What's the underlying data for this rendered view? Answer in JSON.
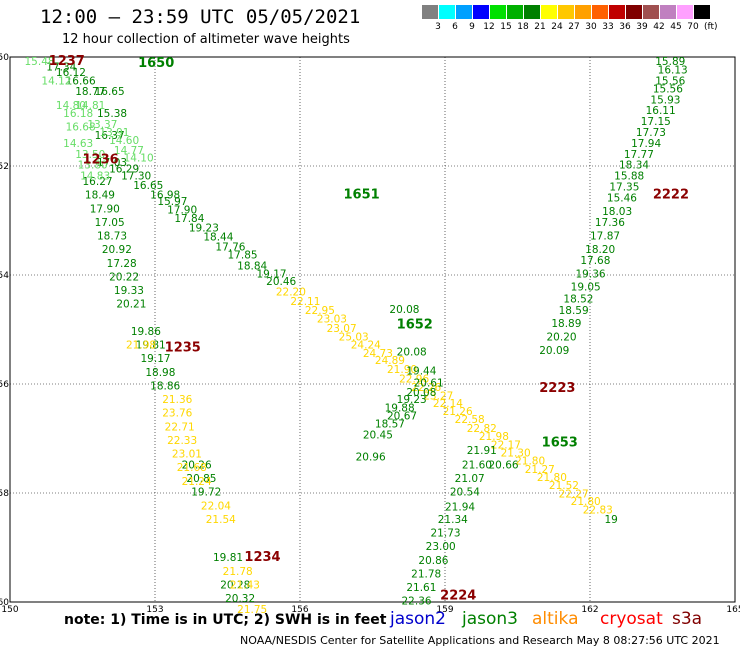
{
  "title": "12:00 – 23:59 UTC 05/05/2021",
  "subtitle": "12 hour collection of altimeter wave heights",
  "legend": {
    "unit": "(ft)",
    "ticks": [
      "3",
      "6",
      "9",
      "12",
      "15",
      "18",
      "21",
      "24",
      "27",
      "30",
      "33",
      "36",
      "39",
      "42",
      "45",
      "70"
    ],
    "colors": [
      "#808080",
      "#00ffff",
      "#00a0ff",
      "#0000ff",
      "#00e000",
      "#00b000",
      "#008000",
      "#ffff00",
      "#ffc800",
      "#ffa000",
      "#ff6000",
      "#c00000",
      "#800000",
      "#a05050",
      "#c080c0",
      "#ffa0ff",
      "#000000"
    ]
  },
  "note": "note: 1) Time is in UTC; 2) SWH is in feet",
  "satellites": [
    {
      "name": "jason2",
      "color": "#0000cc"
    },
    {
      "name": "jason3",
      "color": "#008000"
    },
    {
      "name": "altika",
      "color": "#ff8c00"
    },
    {
      "name": "cryosat",
      "color": "#ff0000"
    },
    {
      "name": "s3a",
      "color": "#800000"
    }
  ],
  "credit": "NOAA/NESDIS Center for Satellite Applications and Research    May  8 08:27:56 UTC 2021",
  "chart_data": {
    "type": "scatter",
    "x_ticks": [
      "150",
      "153",
      "156",
      "159",
      "162",
      "165"
    ],
    "y_ticks": [
      "-50",
      "-52",
      "-54",
      "-56",
      "-58",
      "-60"
    ],
    "xlim": [
      150,
      165
    ],
    "ylim": [
      -60,
      -50
    ],
    "grid": true,
    "tracks": [
      {
        "color": "#008000",
        "pass": "1651",
        "pass_pos": [
          156.9,
          -52.6
        ],
        "points": [
          [
            151.8,
            -52.0,
            "17.03"
          ],
          [
            152.05,
            -52.12,
            "16.29"
          ],
          [
            152.3,
            -52.25,
            "17.30"
          ],
          [
            152.55,
            -52.42,
            "16.65"
          ],
          [
            152.9,
            -52.6,
            "16.98"
          ],
          [
            153.05,
            -52.72,
            "15.97"
          ],
          [
            153.25,
            -52.87,
            "17.90"
          ],
          [
            153.4,
            -53.03,
            "17.84"
          ],
          [
            153.7,
            -53.2,
            "19.23"
          ],
          [
            154.0,
            -53.37,
            "18.44"
          ],
          [
            154.25,
            -53.55,
            "17.76"
          ],
          [
            154.5,
            -53.7,
            "17.85"
          ],
          [
            154.7,
            -53.9,
            "18.84"
          ],
          [
            155.1,
            -54.05,
            "19.17"
          ],
          [
            155.3,
            -54.18,
            "20.46"
          ],
          [
            157.85,
            -54.7,
            "20.08"
          ]
        ]
      },
      {
        "color": "#ffd700",
        "pass": "",
        "pass_pos": null,
        "points": [
          [
            155.5,
            -54.38,
            "22.20"
          ],
          [
            155.8,
            -54.55,
            "22.11"
          ],
          [
            156.1,
            -54.72,
            "22.95"
          ],
          [
            156.35,
            -54.87,
            "23.03"
          ],
          [
            156.55,
            -55.05,
            "23.07"
          ],
          [
            156.8,
            -55.2,
            "25.03"
          ],
          [
            157.05,
            -55.35,
            "24.24"
          ],
          [
            157.3,
            -55.5,
            "24.73"
          ],
          [
            157.55,
            -55.63,
            "24.89"
          ],
          [
            157.8,
            -55.8,
            "21.90"
          ],
          [
            158.05,
            -55.97,
            "22.96"
          ],
          [
            158.3,
            -56.13,
            "22.26"
          ],
          [
            158.55,
            -56.28,
            "23.27"
          ],
          [
            158.75,
            -56.42,
            "22.14"
          ],
          [
            158.95,
            -56.57,
            "21.26"
          ],
          [
            159.2,
            -56.72,
            "22.58"
          ],
          [
            159.45,
            -56.88,
            "22.82"
          ],
          [
            159.7,
            -57.03,
            "21.98"
          ],
          [
            159.95,
            -57.18,
            "22.17"
          ],
          [
            160.15,
            -57.33,
            "21.30"
          ],
          [
            160.45,
            -57.48,
            "21.80"
          ],
          [
            160.65,
            -57.63,
            "21.27"
          ],
          [
            160.9,
            -57.78,
            "21.80"
          ],
          [
            161.15,
            -57.93,
            "21.52"
          ],
          [
            161.35,
            -58.08,
            "22.27"
          ],
          [
            161.6,
            -58.22,
            "21.80"
          ],
          [
            161.85,
            -58.38,
            "22.83"
          ]
        ]
      },
      {
        "color": "#008000",
        "pass": "1652",
        "pass_pos": [
          158.0,
          -54.98
        ],
        "points": [
          [
            158.0,
            -55.48,
            "20.08"
          ],
          [
            158.2,
            -55.83,
            "19.44"
          ],
          [
            158.35,
            -56.05,
            "20.61"
          ],
          [
            158.2,
            -56.22,
            "20.08"
          ],
          [
            158.0,
            -56.35,
            "19.23"
          ],
          [
            157.75,
            -56.5,
            "19.88"
          ],
          [
            157.8,
            -56.65,
            "20.67"
          ],
          [
            157.55,
            -56.8,
            "18.57"
          ],
          [
            157.3,
            -57.0,
            "20.45"
          ],
          [
            157.15,
            -57.4,
            "20.96"
          ],
          [
            159.9,
            -57.55,
            "20.66"
          ],
          [
            162.3,
            -58.55,
            "19"
          ]
        ]
      },
      {
        "color": "#008000",
        "pass": "1653",
        "pass_pos": [
          161.0,
          -57.15
        ],
        "points": [
          [
            163.35,
            -50.15,
            "15.89"
          ],
          [
            163.4,
            -50.3,
            "16.13"
          ],
          [
            163.35,
            -50.5,
            "15.56"
          ],
          [
            163.3,
            -50.65,
            "15.56"
          ],
          [
            163.25,
            -50.85,
            "15.93"
          ],
          [
            163.15,
            -51.05,
            "16.11"
          ],
          [
            163.05,
            -51.25,
            "17.15"
          ],
          [
            162.95,
            -51.45,
            "17.73"
          ],
          [
            162.85,
            -51.65,
            "17.94"
          ],
          [
            162.7,
            -51.85,
            "17.77"
          ],
          [
            162.6,
            -52.05,
            "18.34"
          ],
          [
            162.5,
            -52.25,
            "15.88"
          ],
          [
            162.4,
            -52.45,
            "17.35"
          ],
          [
            162.35,
            -52.65,
            "15.46"
          ],
          [
            162.25,
            -52.9,
            "18.03"
          ],
          [
            162.1,
            -53.1,
            "17.36"
          ],
          [
            162.0,
            -53.35,
            "17.87"
          ],
          [
            161.9,
            -53.6,
            "18.20"
          ],
          [
            161.8,
            -53.8,
            "17.68"
          ],
          [
            161.7,
            -54.05,
            "19.36"
          ],
          [
            161.6,
            -54.28,
            "19.05"
          ],
          [
            161.45,
            -54.5,
            "18.52"
          ],
          [
            161.35,
            -54.72,
            "18.59"
          ],
          [
            161.2,
            -54.95,
            "18.89"
          ],
          [
            161.1,
            -55.2,
            "20.20"
          ],
          [
            160.95,
            -55.45,
            "20.09"
          ],
          [
            159.45,
            -57.28,
            "21.91"
          ],
          [
            159.35,
            -57.55,
            "21.60"
          ],
          [
            159.2,
            -57.8,
            "21.07"
          ],
          [
            159.1,
            -58.05,
            "20.54"
          ],
          [
            159.0,
            -58.32,
            "21.94"
          ],
          [
            158.85,
            -58.55,
            "21.34"
          ],
          [
            158.7,
            -58.8,
            "21.73"
          ],
          [
            158.6,
            -59.05,
            "23.00"
          ],
          [
            158.45,
            -59.3,
            "20.86"
          ],
          [
            158.3,
            -59.55,
            "21.78"
          ],
          [
            158.2,
            -59.8,
            "21.61"
          ],
          [
            158.1,
            -60.05,
            "22.36"
          ]
        ]
      },
      {
        "color": "#008000",
        "pass": "1650",
        "pass_pos": [
          152.65,
          -50.18
        ],
        "points": [
          [
            150.75,
            -50.25,
            "17.34"
          ],
          [
            150.95,
            -50.35,
            "16.12"
          ],
          [
            151.15,
            -50.5,
            "16.66"
          ],
          [
            151.35,
            -50.7,
            "18.77"
          ],
          [
            151.75,
            -50.7,
            "16.65"
          ],
          [
            151.8,
            -51.1,
            "15.38"
          ],
          [
            151.75,
            -51.5,
            "16.37"
          ],
          [
            151.5,
            -52.35,
            "16.27"
          ],
          [
            151.55,
            -52.6,
            "18.49"
          ],
          [
            151.65,
            -52.85,
            "17.90"
          ],
          [
            151.75,
            -53.1,
            "17.05"
          ],
          [
            151.8,
            -53.35,
            "18.73"
          ],
          [
            151.9,
            -53.6,
            "20.92"
          ],
          [
            152.0,
            -53.85,
            "17.28"
          ],
          [
            152.05,
            -54.1,
            "20.22"
          ],
          [
            152.15,
            -54.35,
            "19.33"
          ],
          [
            152.2,
            -54.6,
            "20.21"
          ],
          [
            152.5,
            -55.1,
            "19.86"
          ],
          [
            152.6,
            -55.35,
            "19.81"
          ],
          [
            152.7,
            -55.6,
            "19.17"
          ],
          [
            152.8,
            -55.85,
            "18.98"
          ],
          [
            152.9,
            -56.1,
            "18.86"
          ],
          [
            153.55,
            -57.55,
            "20.26"
          ],
          [
            153.65,
            -57.8,
            "20.85"
          ],
          [
            153.75,
            -58.05,
            "19.72"
          ],
          [
            154.2,
            -59.25,
            "19.81"
          ],
          [
            154.35,
            -59.75,
            "20.28"
          ],
          [
            154.45,
            -60.0,
            "20.32"
          ]
        ]
      },
      {
        "color": "#66dd66",
        "pass": "",
        "pass_pos": null,
        "points": [
          [
            150.3,
            -50.15,
            "15.48"
          ],
          [
            150.65,
            -50.5,
            "14.12"
          ],
          [
            150.95,
            -50.95,
            "14.80"
          ],
          [
            151.35,
            -50.95,
            "14.81"
          ],
          [
            151.1,
            -51.1,
            "16.18"
          ],
          [
            151.15,
            -51.35,
            "16.68"
          ],
          [
            151.1,
            -51.65,
            "14.63"
          ],
          [
            151.35,
            -51.85,
            "13.50"
          ],
          [
            151.4,
            -52.05,
            "13.80"
          ],
          [
            151.45,
            -52.25,
            "14.83"
          ],
          [
            151.6,
            -51.3,
            "13.37"
          ],
          [
            151.85,
            -51.45,
            "13.91"
          ],
          [
            152.05,
            -51.6,
            "14.60"
          ],
          [
            152.15,
            -51.78,
            "14.77"
          ],
          [
            152.35,
            -51.92,
            "14.10"
          ]
        ]
      },
      {
        "color": "#ffd700",
        "pass": "",
        "pass_pos": null,
        "points": [
          [
            152.4,
            -55.35,
            "21.98"
          ],
          [
            153.15,
            -56.35,
            "21.36"
          ],
          [
            153.15,
            -56.6,
            "23.76"
          ],
          [
            153.2,
            -56.85,
            "22.71"
          ],
          [
            153.25,
            -57.1,
            "22.33"
          ],
          [
            153.35,
            -57.35,
            "23.01"
          ],
          [
            153.45,
            -57.6,
            "21.68"
          ],
          [
            153.55,
            -57.85,
            "21.24"
          ],
          [
            153.95,
            -58.3,
            "22.04"
          ],
          [
            154.05,
            -58.55,
            "21.54"
          ],
          [
            154.4,
            -59.5,
            "21.78"
          ],
          [
            154.55,
            -59.75,
            "21.43"
          ],
          [
            154.7,
            -60.2,
            "21.75"
          ]
        ]
      }
    ],
    "other_passes": [
      {
        "label": "1235",
        "color": "#8b0000",
        "pos": [
          153.2,
          -55.4
        ]
      },
      {
        "label": "1236",
        "color": "#8b0000",
        "pos": [
          151.5,
          -51.95
        ]
      },
      {
        "label": "1234",
        "color": "#8b0000",
        "pos": [
          154.85,
          -59.25
        ]
      },
      {
        "label": "1237",
        "color": "#8b0000",
        "pos": [
          150.8,
          -50.15
        ]
      },
      {
        "label": "2222",
        "color": "#8b0000",
        "pos": [
          163.3,
          -52.6
        ]
      },
      {
        "label": "2223",
        "color": "#8b0000",
        "pos": [
          160.95,
          -56.15
        ]
      },
      {
        "label": "2224",
        "color": "#8b0000",
        "pos": [
          158.9,
          -59.95
        ]
      }
    ]
  }
}
